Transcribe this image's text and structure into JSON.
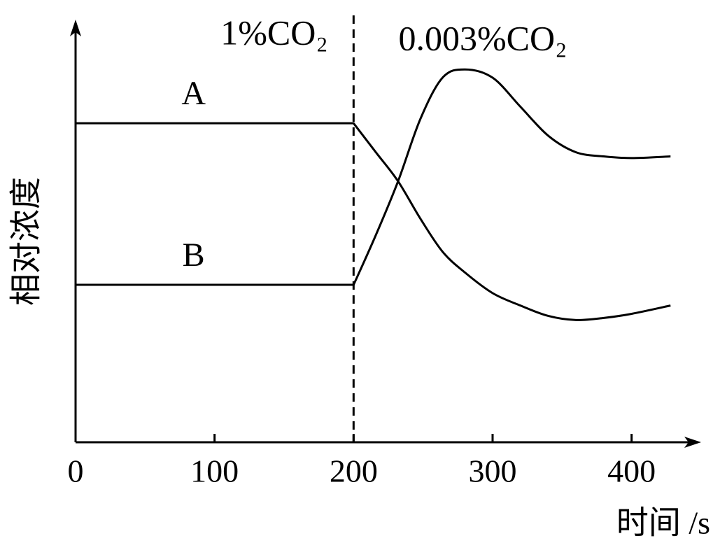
{
  "chart_data": {
    "type": "line",
    "y_label": "相对浓度",
    "x_label": "时间 /s",
    "annotations": [
      "1%CO₂",
      "0.003%CO₂"
    ],
    "divider_x": 200,
    "x": [
      0,
      200,
      216,
      232,
      248,
      264,
      280,
      300,
      320,
      340,
      360,
      380,
      400,
      428
    ],
    "series": [
      {
        "name": "A",
        "color": "#000000",
        "values": [
          77,
          77,
          70,
          63,
          54,
          46,
          41,
          36,
          33,
          30.5,
          29.5,
          30,
          31,
          33
        ]
      },
      {
        "name": "B",
        "color": "#000000",
        "values": [
          38,
          38,
          50,
          63,
          78,
          88,
          90,
          88,
          81,
          74,
          70,
          69,
          68.6,
          69
        ]
      }
    ],
    "xlim": [
      0,
      450
    ],
    "ylim": [
      0,
      100
    ],
    "xticks": [
      0,
      100,
      200,
      300,
      400
    ],
    "grid": false
  }
}
